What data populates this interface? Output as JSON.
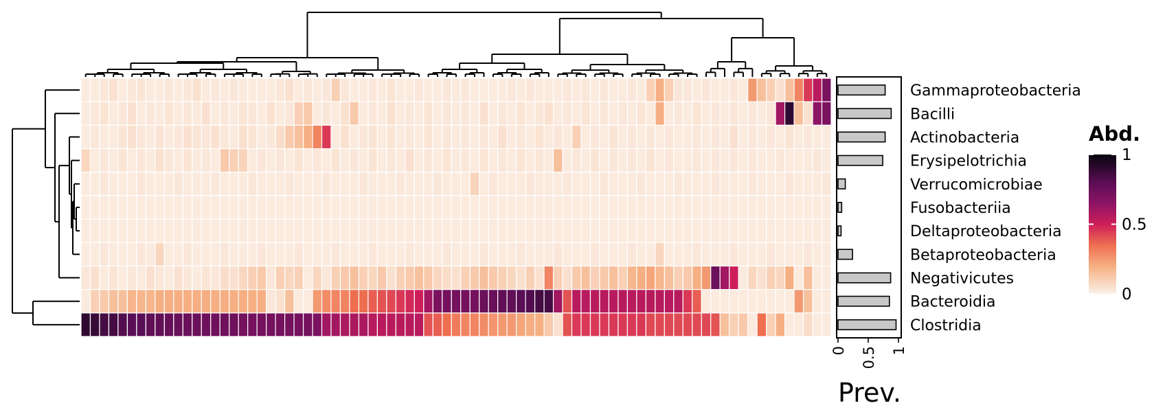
{
  "chart_data": {
    "type": "heatmap",
    "rows": [
      "Gammaproteobacteria",
      "Bacilli",
      "Actinobacteria",
      "Erysipelotrichia",
      "Verrucomicrobiae",
      "Fusobacteriia",
      "Deltaproteobacteria",
      "Betaproteobacteria",
      "Negativicutes",
      "Bacteroidia",
      "Clostridia"
    ],
    "n_columns": 81,
    "values": [
      [
        0.02,
        0.02,
        0.03,
        0.05,
        0.02,
        0.03,
        0.04,
        0.02,
        0.02,
        0.03,
        0.02,
        0.03,
        0.05,
        0.02,
        0.03,
        0.02,
        0.03,
        0.02,
        0.02,
        0.02,
        0.02,
        0.03,
        0.05,
        0.02,
        0.03,
        0.02,
        0.03,
        0.1,
        0.03,
        0.02,
        0.02,
        0.03,
        0.02,
        0.04,
        0.02,
        0.02,
        0.03,
        0.02,
        0.02,
        0.03,
        0.02,
        0.03,
        0.02,
        0.02,
        0.02,
        0.02,
        0.03,
        0.02,
        0.03,
        0.02,
        0.02,
        0.02,
        0.03,
        0.02,
        0.03,
        0.02,
        0.03,
        0.02,
        0.02,
        0.03,
        0.02,
        0.1,
        0.2,
        0.1,
        0.03,
        0.03,
        0.02,
        0.03,
        0.02,
        0.02,
        0.03,
        0.02,
        0.25,
        0.15,
        0.1,
        0.05,
        0.15,
        0.3,
        0.45,
        0.55,
        0.7
      ],
      [
        0.02,
        0.03,
        0.04,
        0.02,
        0.03,
        0.05,
        0.02,
        0.03,
        0.02,
        0.04,
        0.02,
        0.03,
        0.02,
        0.05,
        0.02,
        0.03,
        0.02,
        0.04,
        0.03,
        0.02,
        0.05,
        0.02,
        0.03,
        0.1,
        0.12,
        0.02,
        0.03,
        0.02,
        0.05,
        0.12,
        0.02,
        0.03,
        0.02,
        0.05,
        0.02,
        0.03,
        0.02,
        0.04,
        0.02,
        0.03,
        0.02,
        0.03,
        0.02,
        0.05,
        0.02,
        0.03,
        0.02,
        0.04,
        0.02,
        0.03,
        0.05,
        0.02,
        0.03,
        0.02,
        0.04,
        0.02,
        0.03,
        0.02,
        0.03,
        0.02,
        0.04,
        0.02,
        0.2,
        0.02,
        0.03,
        0.02,
        0.04,
        0.02,
        0.03,
        0.02,
        0.03,
        0.02,
        0.03,
        0.02,
        0.03,
        0.6,
        0.9,
        0.15,
        0.05,
        0.65,
        0.7
      ],
      [
        0.02,
        0.03,
        0.02,
        0.02,
        0.04,
        0.05,
        0.03,
        0.02,
        0.04,
        0.02,
        0.03,
        0.05,
        0.04,
        0.03,
        0.05,
        0.03,
        0.02,
        0.05,
        0.04,
        0.02,
        0.03,
        0.06,
        0.12,
        0.15,
        0.2,
        0.3,
        0.45,
        0.02,
        0.05,
        0.02,
        0.03,
        0.04,
        0.02,
        0.04,
        0.02,
        0.03,
        0.02,
        0.04,
        0.02,
        0.03,
        0.02,
        0.03,
        0.02,
        0.03,
        0.02,
        0.05,
        0.02,
        0.03,
        0.02,
        0.04,
        0.02,
        0.03,
        0.02,
        0.1,
        0.02,
        0.03,
        0.02,
        0.04,
        0.02,
        0.03,
        0.02,
        0.03,
        0.02,
        0.03,
        0.02,
        0.02,
        0.03,
        0.02,
        0.03,
        0.02,
        0.05,
        0.02,
        0.03,
        0.02,
        0.03,
        0.02,
        0.04,
        0.02,
        0.03,
        0.02,
        0.02
      ],
      [
        0.08,
        0.02,
        0.03,
        0.02,
        0.04,
        0.02,
        0.03,
        0.02,
        0.05,
        0.03,
        0.02,
        0.04,
        0.02,
        0.03,
        0.02,
        0.12,
        0.1,
        0.09,
        0.02,
        0.03,
        0.02,
        0.03,
        0.02,
        0.04,
        0.02,
        0.03,
        0.02,
        0.04,
        0.02,
        0.03,
        0.02,
        0.04,
        0.02,
        0.03,
        0.02,
        0.05,
        0.02,
        0.03,
        0.02,
        0.04,
        0.02,
        0.03,
        0.02,
        0.04,
        0.02,
        0.03,
        0.02,
        0.04,
        0.02,
        0.03,
        0.02,
        0.15,
        0.02,
        0.03,
        0.02,
        0.04,
        0.02,
        0.03,
        0.02,
        0.03,
        0.02,
        0.04,
        0.02,
        0.03,
        0.02,
        0.02,
        0.03,
        0.02,
        0.03,
        0.02,
        0.03,
        0.02,
        0.03,
        0.02,
        0.02,
        0.03,
        0.02,
        0.02,
        0.02,
        0.03,
        0.02
      ],
      [
        0.02,
        0.02,
        0.03,
        0.02,
        0.02,
        0.02,
        0.03,
        0.02,
        0.02,
        0.02,
        0.03,
        0.02,
        0.02,
        0.02,
        0.03,
        0.02,
        0.02,
        0.02,
        0.03,
        0.02,
        0.02,
        0.02,
        0.03,
        0.02,
        0.02,
        0.02,
        0.03,
        0.02,
        0.02,
        0.02,
        0.03,
        0.02,
        0.02,
        0.02,
        0.03,
        0.02,
        0.02,
        0.02,
        0.03,
        0.02,
        0.02,
        0.02,
        0.09,
        0.02,
        0.03,
        0.02,
        0.02,
        0.02,
        0.03,
        0.02,
        0.02,
        0.02,
        0.03,
        0.02,
        0.02,
        0.02,
        0.03,
        0.02,
        0.02,
        0.02,
        0.03,
        0.02,
        0.02,
        0.02,
        0.03,
        0.02,
        0.02,
        0.02,
        0.03,
        0.02,
        0.02,
        0.02,
        0.03,
        0.02,
        0.02,
        0.02,
        0.03,
        0.02,
        0.02,
        0.02,
        0.03
      ],
      [
        0.02,
        0.02,
        0.02,
        0.02,
        0.02,
        0.02,
        0.02,
        0.02,
        0.02,
        0.02,
        0.02,
        0.02,
        0.02,
        0.02,
        0.02,
        0.02,
        0.02,
        0.02,
        0.02,
        0.02,
        0.02,
        0.02,
        0.02,
        0.02,
        0.02,
        0.02,
        0.02,
        0.02,
        0.02,
        0.02,
        0.02,
        0.02,
        0.02,
        0.02,
        0.02,
        0.02,
        0.02,
        0.02,
        0.02,
        0.02,
        0.02,
        0.02,
        0.02,
        0.02,
        0.02,
        0.02,
        0.02,
        0.02,
        0.02,
        0.02,
        0.02,
        0.02,
        0.02,
        0.02,
        0.02,
        0.02,
        0.02,
        0.02,
        0.02,
        0.02,
        0.02,
        0.02,
        0.02,
        0.02,
        0.02,
        0.02,
        0.02,
        0.02,
        0.02,
        0.02,
        0.02,
        0.02,
        0.02,
        0.02,
        0.02,
        0.02,
        0.02,
        0.02,
        0.02,
        0.02,
        0.02
      ],
      [
        0.02,
        0.02,
        0.02,
        0.02,
        0.02,
        0.02,
        0.02,
        0.02,
        0.02,
        0.02,
        0.02,
        0.02,
        0.02,
        0.02,
        0.02,
        0.02,
        0.02,
        0.02,
        0.02,
        0.02,
        0.02,
        0.02,
        0.02,
        0.02,
        0.02,
        0.02,
        0.02,
        0.02,
        0.02,
        0.02,
        0.02,
        0.02,
        0.02,
        0.02,
        0.02,
        0.02,
        0.02,
        0.02,
        0.02,
        0.02,
        0.02,
        0.02,
        0.02,
        0.02,
        0.02,
        0.02,
        0.02,
        0.02,
        0.02,
        0.02,
        0.02,
        0.02,
        0.02,
        0.02,
        0.02,
        0.02,
        0.02,
        0.02,
        0.02,
        0.02,
        0.02,
        0.02,
        0.02,
        0.02,
        0.02,
        0.02,
        0.02,
        0.02,
        0.02,
        0.02,
        0.02,
        0.02,
        0.02,
        0.02,
        0.02,
        0.02,
        0.02,
        0.02,
        0.02,
        0.02,
        0.02
      ],
      [
        0.02,
        0.02,
        0.03,
        0.02,
        0.02,
        0.02,
        0.03,
        0.02,
        0.08,
        0.02,
        0.02,
        0.03,
        0.02,
        0.02,
        0.02,
        0.03,
        0.02,
        0.02,
        0.02,
        0.03,
        0.02,
        0.02,
        0.02,
        0.03,
        0.02,
        0.02,
        0.02,
        0.03,
        0.02,
        0.02,
        0.02,
        0.03,
        0.02,
        0.02,
        0.02,
        0.03,
        0.02,
        0.02,
        0.02,
        0.03,
        0.02,
        0.02,
        0.02,
        0.03,
        0.02,
        0.02,
        0.02,
        0.03,
        0.02,
        0.02,
        0.02,
        0.03,
        0.02,
        0.02,
        0.02,
        0.03,
        0.02,
        0.02,
        0.02,
        0.03,
        0.02,
        0.02,
        0.08,
        0.02,
        0.02,
        0.02,
        0.03,
        0.02,
        0.02,
        0.02,
        0.03,
        0.02,
        0.02,
        0.02,
        0.03,
        0.02,
        0.02,
        0.02,
        0.03,
        0.02,
        0.02
      ],
      [
        0.03,
        0.05,
        0.02,
        0.04,
        0.02,
        0.03,
        0.02,
        0.05,
        0.03,
        0.02,
        0.05,
        0.03,
        0.02,
        0.04,
        0.03,
        0.06,
        0.05,
        0.08,
        0.1,
        0.12,
        0.03,
        0.1,
        0.08,
        0.1,
        0.02,
        0.08,
        0.03,
        0.1,
        0.12,
        0.15,
        0.1,
        0.08,
        0.12,
        0.05,
        0.1,
        0.12,
        0.15,
        0.12,
        0.08,
        0.06,
        0.05,
        0.1,
        0.12,
        0.15,
        0.12,
        0.1,
        0.08,
        0.05,
        0.1,
        0.05,
        0.3,
        0.1,
        0.05,
        0.12,
        0.15,
        0.1,
        0.12,
        0.15,
        0.1,
        0.18,
        0.2,
        0.22,
        0.18,
        0.15,
        0.1,
        0.12,
        0.2,
        0.25,
        0.75,
        0.6,
        0.5,
        0.02,
        0.08,
        0.05,
        0.1,
        0.08,
        0.2,
        0.02,
        0.15,
        0.02,
        0.02
      ],
      [
        0.02,
        0.1,
        0.12,
        0.15,
        0.15,
        0.18,
        0.18,
        0.18,
        0.2,
        0.2,
        0.2,
        0.2,
        0.2,
        0.2,
        0.2,
        0.2,
        0.2,
        0.2,
        0.2,
        0.2,
        0.03,
        0.05,
        0.15,
        0.02,
        0.02,
        0.25,
        0.28,
        0.3,
        0.3,
        0.35,
        0.35,
        0.38,
        0.4,
        0.42,
        0.45,
        0.48,
        0.5,
        0.6,
        0.7,
        0.72,
        0.72,
        0.72,
        0.72,
        0.75,
        0.75,
        0.78,
        0.78,
        0.8,
        0.82,
        0.85,
        0.85,
        0.6,
        0.4,
        0.55,
        0.55,
        0.55,
        0.55,
        0.55,
        0.55,
        0.55,
        0.55,
        0.55,
        0.55,
        0.55,
        0.55,
        0.45,
        0.38,
        0.02,
        0.02,
        0.02,
        0.02,
        0.02,
        0.02,
        0.02,
        0.02,
        0.02,
        0.02,
        0.25,
        0.15,
        0.02,
        0.02
      ],
      [
        0.9,
        0.88,
        0.85,
        0.85,
        0.82,
        0.8,
        0.8,
        0.78,
        0.78,
        0.76,
        0.76,
        0.75,
        0.75,
        0.74,
        0.74,
        0.74,
        0.74,
        0.72,
        0.72,
        0.72,
        0.72,
        0.72,
        0.72,
        0.72,
        0.72,
        0.7,
        0.6,
        0.6,
        0.58,
        0.58,
        0.58,
        0.55,
        0.55,
        0.55,
        0.55,
        0.55,
        0.55,
        0.4,
        0.38,
        0.35,
        0.32,
        0.3,
        0.3,
        0.28,
        0.26,
        0.25,
        0.25,
        0.22,
        0.2,
        0.2,
        0.12,
        0.05,
        0.4,
        0.45,
        0.45,
        0.45,
        0.45,
        0.45,
        0.45,
        0.45,
        0.45,
        0.42,
        0.42,
        0.42,
        0.42,
        0.42,
        0.42,
        0.42,
        0.4,
        0.15,
        0.1,
        0.12,
        0.02,
        0.35,
        0.1,
        0.2,
        0.02,
        0.02,
        0.06,
        0.02,
        0.02
      ]
    ],
    "prevalence": [
      0.78,
      0.88,
      0.78,
      0.74,
      0.12,
      0.06,
      0.05,
      0.24,
      0.87,
      0.85,
      0.96
    ],
    "prevalence_axis": {
      "label": "Prev.",
      "ticks": [
        "0",
        "0.5",
        "1"
      ],
      "range": [
        0,
        1
      ]
    },
    "legend": {
      "title": "Abd.",
      "ticks": [
        "0",
        "0.5",
        "1"
      ],
      "range": [
        0,
        1
      ],
      "palette": "rocket-reversed"
    },
    "colors": {
      "bar_fill": "#c8c8c8",
      "cell_border": "#ffffff",
      "line": "#000000"
    }
  }
}
